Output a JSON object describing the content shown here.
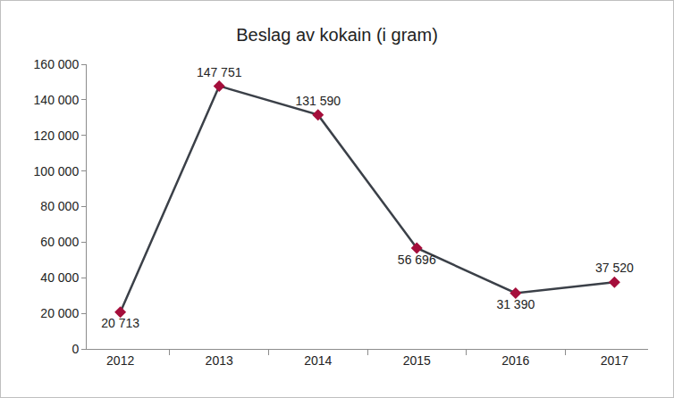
{
  "chart_data": {
    "type": "line",
    "title": "Beslag av kokain (i gram)",
    "categories": [
      "2012",
      "2013",
      "2014",
      "2015",
      "2016",
      "2017"
    ],
    "values": [
      20713,
      147751,
      131590,
      56696,
      31390,
      37520
    ],
    "value_labels": [
      "20 713",
      "147 751",
      "131 590",
      "56 696",
      "31 390",
      "37 520"
    ],
    "data_labels": true,
    "color": "#3b4048",
    "colors": [
      "#a50e3b",
      "#a50e3b",
      "#a50e3b",
      "#a50e3b",
      "#a50e3b",
      "#a50e3b"
    ],
    "marker": "diamond",
    "line_style": "solid",
    "grid": false,
    "ylim": [
      0,
      160000
    ],
    "yticks": [
      0,
      {
        "value": 20000,
        "label": "20 000"
      },
      {
        "value": 40000,
        "label": "40 000"
      },
      {
        "value": 60000,
        "label": "60 000"
      },
      {
        "value": 80000,
        "label": "80 000"
      },
      {
        "value": 100000,
        "label": "100 000"
      },
      {
        "value": 120000,
        "label": "120 000"
      },
      {
        "value": 140000,
        "label": "140 000"
      },
      {
        "value": 160000,
        "label": "160 000"
      }
    ]
  }
}
